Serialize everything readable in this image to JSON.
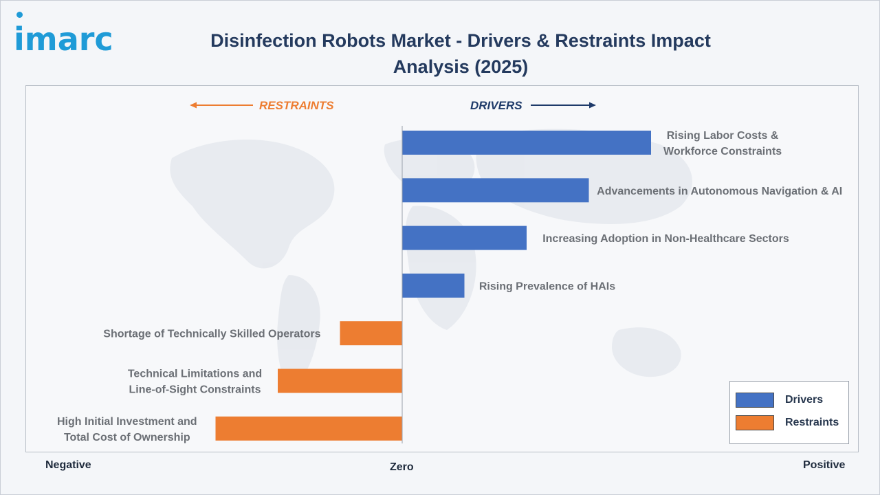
{
  "header": {
    "logo_text": "imarc",
    "title": "Disinfection Robots Market - Drivers & Restraints Impact Analysis (2025)"
  },
  "axis": {
    "negative": "Negative",
    "zero": "Zero",
    "positive": "Positive"
  },
  "legend": {
    "drivers_label": "Drivers",
    "restraints_label": "Restraints"
  },
  "colors": {
    "drivers": "#4472c4",
    "restraints": "#ed7d31",
    "drivers_arrow": "#1f3b6a",
    "restraints_arrow": "#ed7d31",
    "label_text": "#6b6f75"
  },
  "chart_data": {
    "type": "bar",
    "orientation": "horizontal",
    "direction_labels": {
      "restraints": "RESTRAINTS",
      "drivers": "DRIVERS"
    },
    "categories": [
      "Rising Labor Costs & Workforce Constraints",
      "Advancements in Autonomous Navigation & AI",
      "Increasing Adoption in Non-Healthcare Sectors",
      "Rising Prevalence of HAIs",
      "Shortage of Technically Skilled Operators",
      "Technical Limitations and Line-of-Sight Constraints",
      "High Initial Investment and Total Cost of Ownership"
    ],
    "values": [
      4,
      3,
      2,
      1,
      -1,
      -2,
      -3
    ],
    "series": [
      {
        "name": "Drivers",
        "values": [
          4,
          3,
          2,
          1,
          null,
          null,
          null
        ]
      },
      {
        "name": "Restraints",
        "values": [
          null,
          null,
          null,
          null,
          -1,
          -2,
          -3
        ]
      }
    ],
    "xlim": [
      -6,
      7
    ],
    "grid": false,
    "legend_position": "bottom-right"
  }
}
